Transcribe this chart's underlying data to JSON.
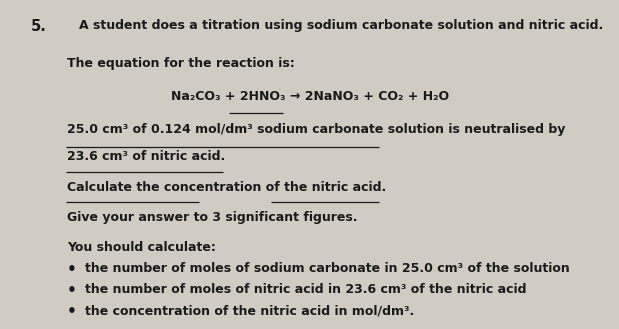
{
  "background_color": "#d0ccc4",
  "text_color": "#1a1a1a",
  "question_number": "5.",
  "line1": "A student does a titration using sodium carbonate solution and nitric acid.",
  "line2": "The equation for the reaction is:",
  "equation": "Na₂CO₃ + 2HNO₃ → 2NaNO₃ + CO₂ + H₂O",
  "given_info_line1": "25.0 cm³ of 0.124 mol/dm³ sodium carbonate solution is neutralised by",
  "given_info_line2": "23.6 cm³ of nitric acid.",
  "calc_line1": "Calculate the concentration of the nitric acid.",
  "calc_line2": "Give your answer to 3 significant figures.",
  "should_calc": "You should calculate:",
  "bullet1": "the number of moles of sodium carbonate in 25.0 cm³ of the solution",
  "bullet2": "the number of moles of nitric acid in 23.6 cm³ of the nitric acid",
  "bullet3": "the concentration of the nitric acid in mol/dm³.",
  "font_size": 9.0,
  "title_font_size": 10.5
}
